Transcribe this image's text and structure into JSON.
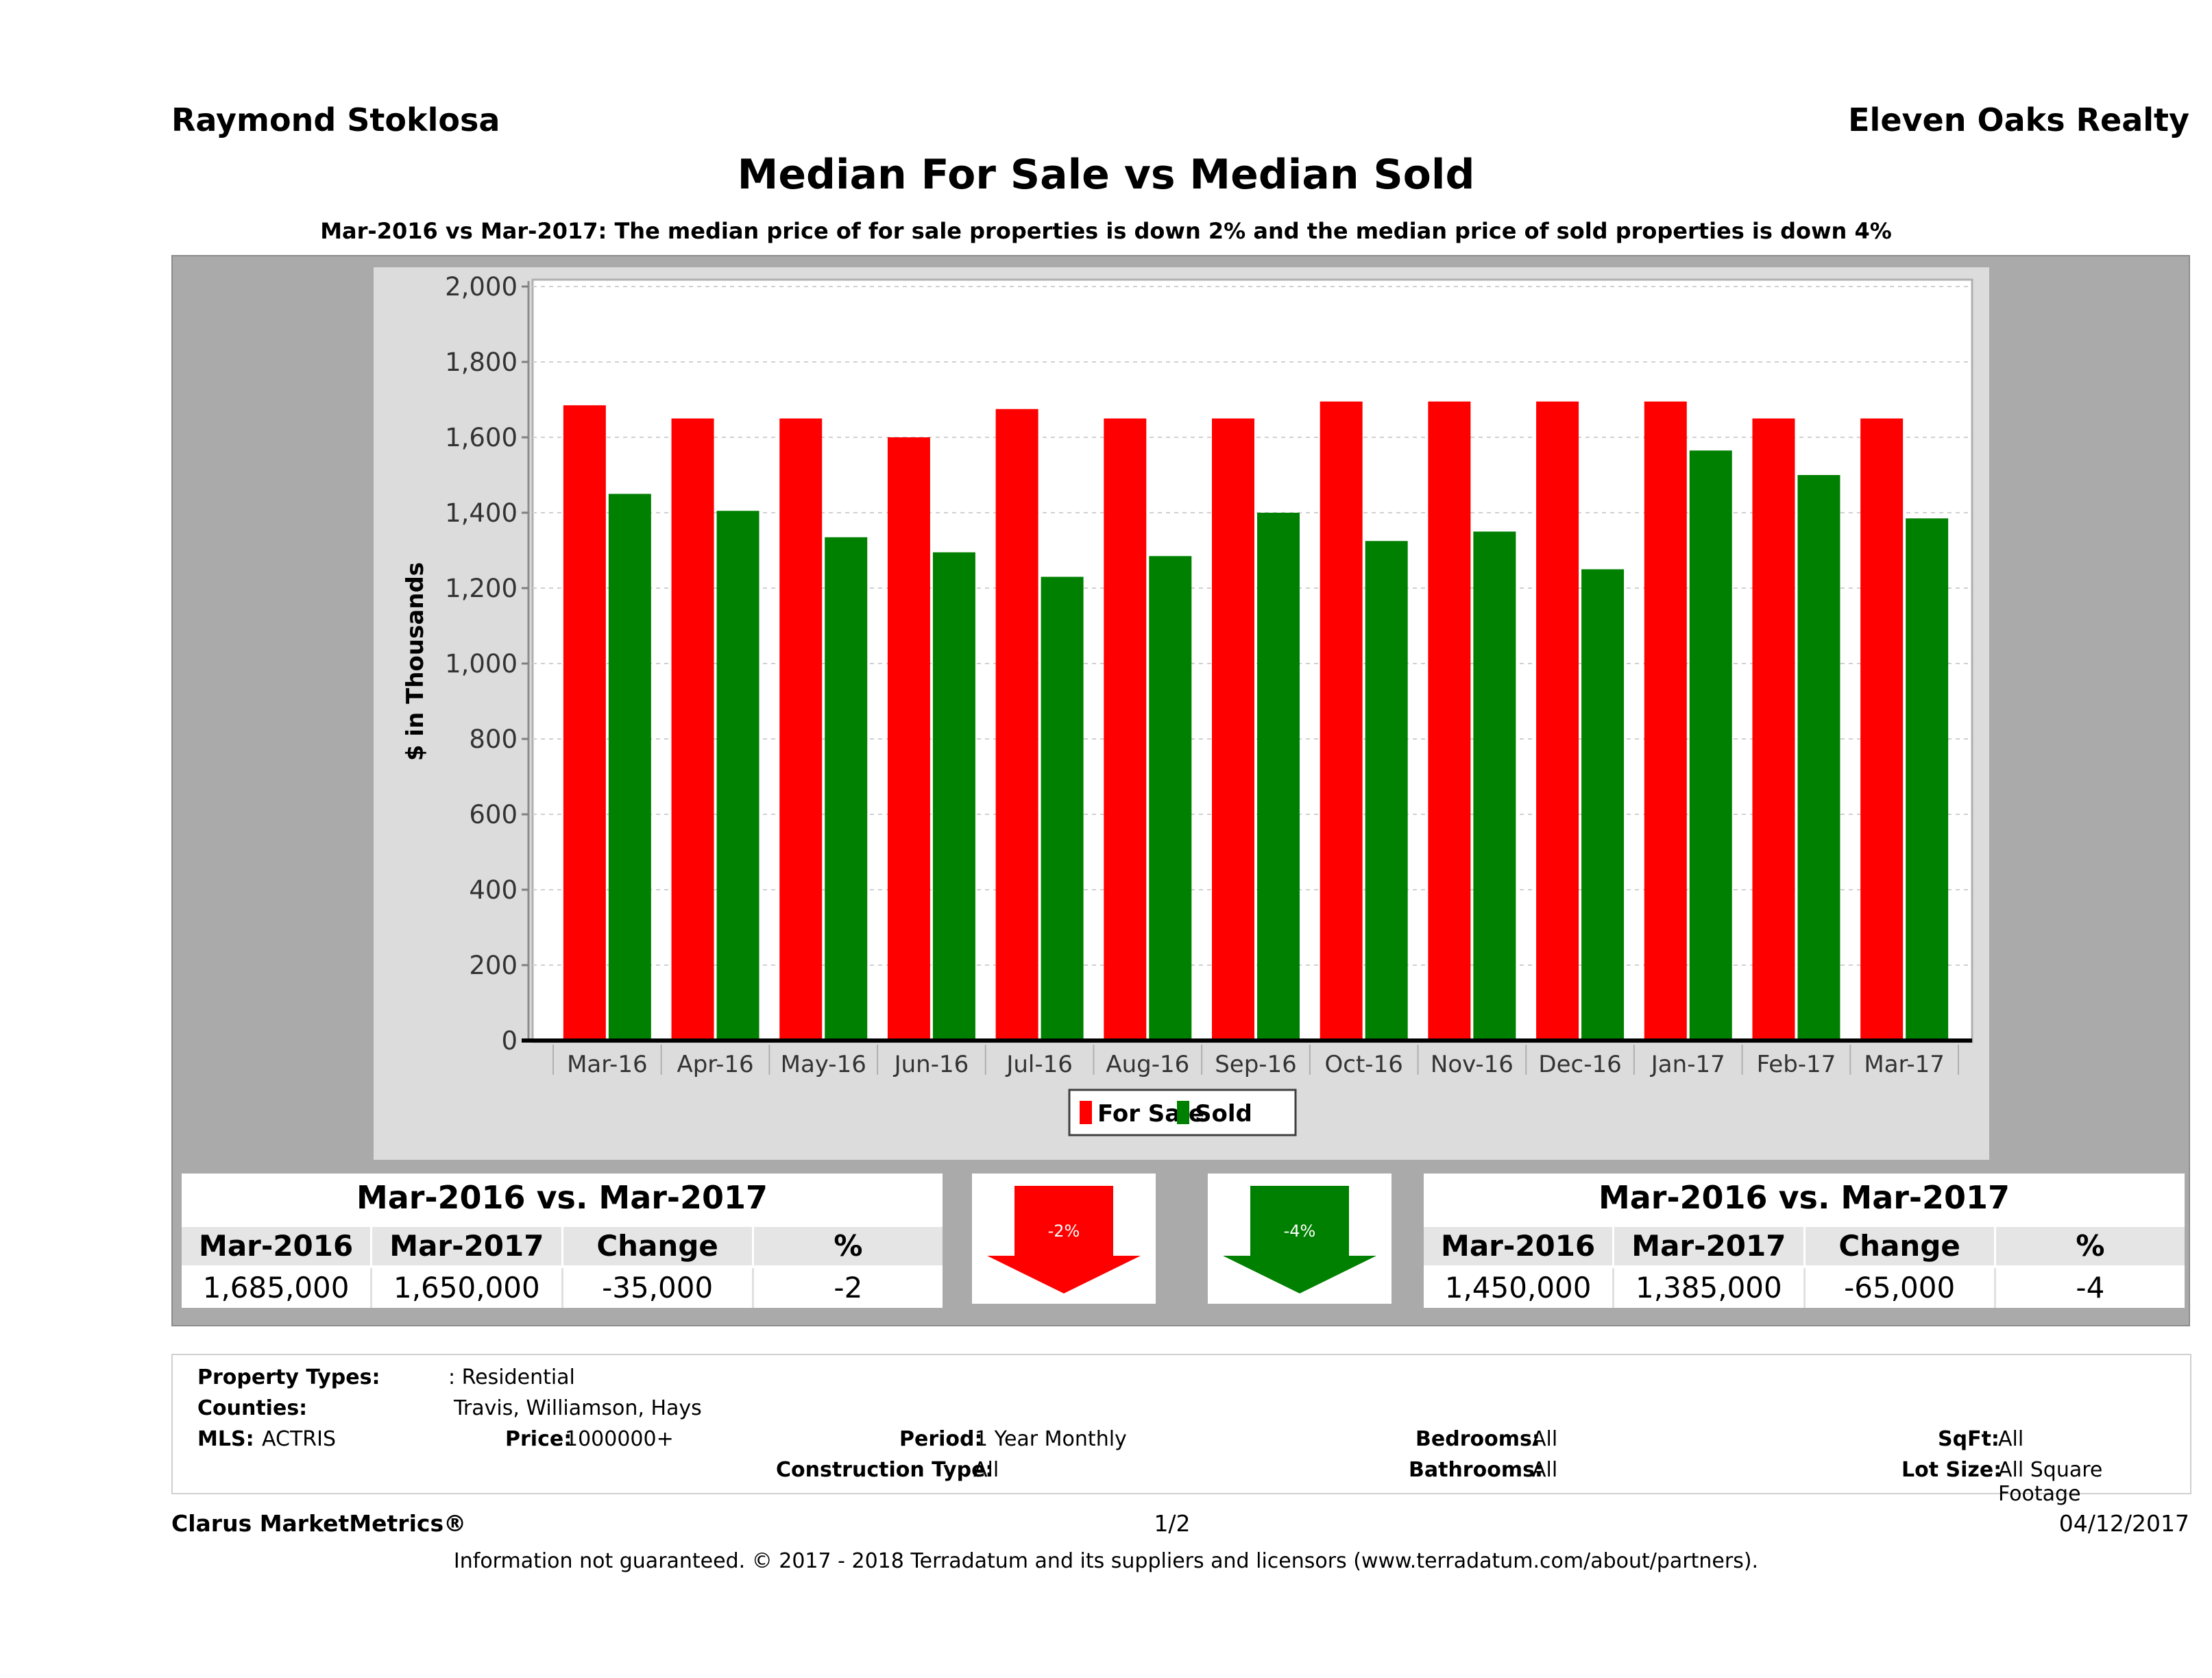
{
  "header": {
    "agent_name": "Raymond Stoklosa",
    "company": "Eleven Oaks Realty",
    "title": "Median For Sale vs Median Sold",
    "subtitle": "Mar-2016 vs Mar-2017: The median price of for sale properties is down 2% and the median price of sold properties is down 4%"
  },
  "chart_data": {
    "type": "bar",
    "ylabel": "$ in Thousands",
    "xlabel": "",
    "ylim": [
      0,
      2000
    ],
    "yticks": [
      0,
      200,
      400,
      600,
      800,
      1000,
      1200,
      1400,
      1600,
      1800,
      2000
    ],
    "ytick_labels": [
      "0",
      "200",
      "400",
      "600",
      "800",
      "1,000",
      "1,200",
      "1,400",
      "1,600",
      "1,800",
      "2,000"
    ],
    "categories": [
      "Mar-16",
      "Apr-16",
      "May-16",
      "Jun-16",
      "Jul-16",
      "Aug-16",
      "Sep-16",
      "Oct-16",
      "Nov-16",
      "Dec-16",
      "Jan-17",
      "Feb-17",
      "Mar-17"
    ],
    "series": [
      {
        "name": "For Sale",
        "color": "#ff0000",
        "values": [
          1685,
          1650,
          1650,
          1600,
          1675,
          1650,
          1650,
          1695,
          1695,
          1695,
          1695,
          1650,
          1650
        ]
      },
      {
        "name": "Sold",
        "color": "#008000",
        "values": [
          1450,
          1405,
          1335,
          1295,
          1230,
          1285,
          1400,
          1325,
          1350,
          1250,
          1565,
          1500,
          1385
        ]
      }
    ],
    "grid": true,
    "legend_position": "bottom-center"
  },
  "stats_for_sale": {
    "heading": "Mar-2016 vs. Mar-2017",
    "columns": [
      "Mar-2016",
      "Mar-2017",
      "Change",
      "%"
    ],
    "values": [
      "1,685,000",
      "1,650,000",
      "-35,000",
      "-2"
    ]
  },
  "stats_sold": {
    "heading": "Mar-2016 vs. Mar-2017",
    "columns": [
      "Mar-2016",
      "Mar-2017",
      "Change",
      "%"
    ],
    "values": [
      "1,450,000",
      "1,385,000",
      "-65,000",
      "-4"
    ]
  },
  "arrows": {
    "for_sale_change": "-2%",
    "sold_change": "-4%",
    "for_sale_color": "#ff0000",
    "sold_color": "#008000"
  },
  "details": {
    "property_types_label": "Property Types:",
    "property_types_value": ": Residential",
    "counties_label": "Counties:",
    "counties_value": "Travis, Williamson, Hays",
    "mls_label": "MLS:",
    "mls_value": "ACTRIS",
    "price_label": "Price:",
    "price_value": "1000000+",
    "period_label": "Period:",
    "period_value": "1 Year Monthly",
    "construction_label": "Construction Type:",
    "construction_value": "All",
    "bedrooms_label": "Bedrooms:",
    "bedrooms_value": "All",
    "bathrooms_label": "Bathrooms:",
    "bathrooms_value": "All",
    "sqft_label": "SqFt:",
    "sqft_value": "All",
    "lot_size_label": "Lot Size:",
    "lot_size_value": "All Square Footage"
  },
  "footer": {
    "brand": "Clarus MarketMetrics®",
    "page": "1/2",
    "date": "04/12/2017",
    "disclaimer": "Information not guaranteed. © 2017 - 2018 Terradatum and its suppliers and licensors (www.terradatum.com/about/partners)."
  }
}
